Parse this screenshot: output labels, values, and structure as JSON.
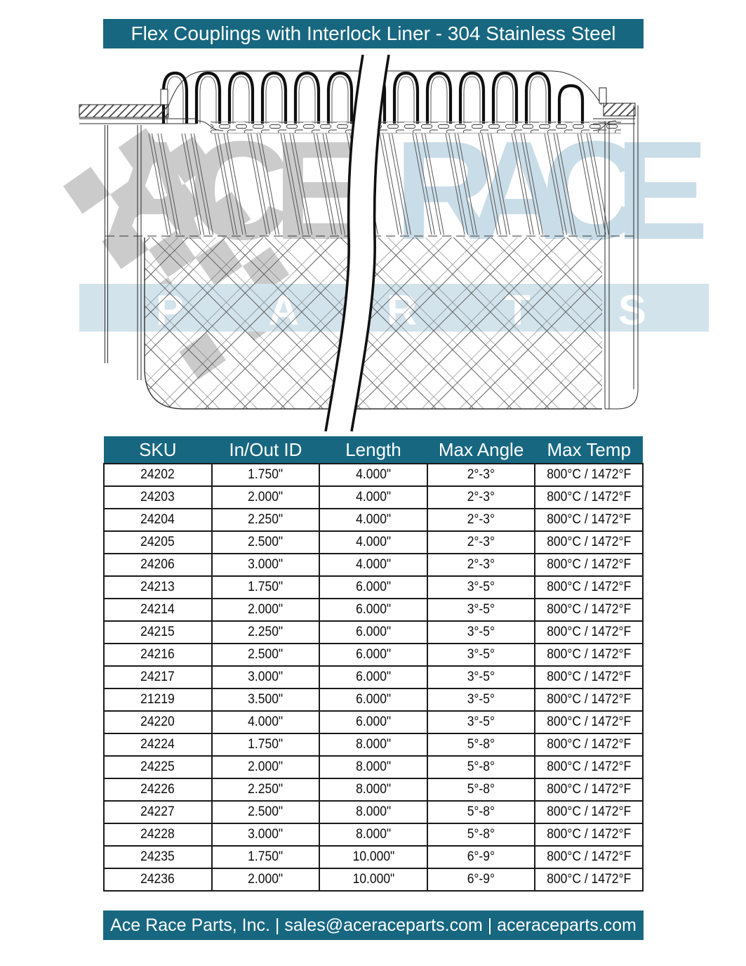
{
  "theme": {
    "teal": "#176781",
    "watermark_gray": "#cbcbcb",
    "watermark_blue": "#c9dde8",
    "watermark_band": "#d2e3ec",
    "line_color": "#2a2a2a"
  },
  "header": {
    "title": "Flex Couplings with Interlock Liner - 304 Stainless Steel"
  },
  "watermark": {
    "word1": "ACE",
    "word2": "RACE",
    "word3": "PARTS"
  },
  "table": {
    "columns": [
      "SKU",
      "In/Out ID",
      "Length",
      "Max Angle",
      "Max Temp"
    ],
    "rows": [
      [
        "24202",
        "1.750\"",
        "4.000\"",
        "2°-3°",
        "800°C / 1472°F"
      ],
      [
        "24203",
        "2.000\"",
        "4.000\"",
        "2°-3°",
        "800°C / 1472°F"
      ],
      [
        "24204",
        "2.250\"",
        "4.000\"",
        "2°-3°",
        "800°C / 1472°F"
      ],
      [
        "24205",
        "2.500\"",
        "4.000\"",
        "2°-3°",
        "800°C / 1472°F"
      ],
      [
        "24206",
        "3.000\"",
        "4.000\"",
        "2°-3°",
        "800°C / 1472°F"
      ],
      [
        "24213",
        "1.750\"",
        "6.000\"",
        "3°-5°",
        "800°C / 1472°F"
      ],
      [
        "24214",
        "2.000\"",
        "6.000\"",
        "3°-5°",
        "800°C / 1472°F"
      ],
      [
        "24215",
        "2.250\"",
        "6.000\"",
        "3°-5°",
        "800°C / 1472°F"
      ],
      [
        "24216",
        "2.500\"",
        "6.000\"",
        "3°-5°",
        "800°C / 1472°F"
      ],
      [
        "24217",
        "3.000\"",
        "6.000\"",
        "3°-5°",
        "800°C / 1472°F"
      ],
      [
        "21219",
        "3.500\"",
        "6.000\"",
        "3°-5°",
        "800°C / 1472°F"
      ],
      [
        "24220",
        "4.000\"",
        "6.000\"",
        "3°-5°",
        "800°C / 1472°F"
      ],
      [
        "24224",
        "1.750\"",
        "8.000\"",
        "5°-8°",
        "800°C / 1472°F"
      ],
      [
        "24225",
        "2.000\"",
        "8.000\"",
        "5°-8°",
        "800°C / 1472°F"
      ],
      [
        "24226",
        "2.250\"",
        "8.000\"",
        "5°-8°",
        "800°C / 1472°F"
      ],
      [
        "24227",
        "2.500\"",
        "8.000\"",
        "5°-8°",
        "800°C / 1472°F"
      ],
      [
        "24228",
        "3.000\"",
        "8.000\"",
        "5°-8°",
        "800°C / 1472°F"
      ],
      [
        "24235",
        "1.750\"",
        "10.000\"",
        "6°-9°",
        "800°C / 1472°F"
      ],
      [
        "24236",
        "2.000\"",
        "10.000\"",
        "6°-9°",
        "800°C / 1472°F"
      ]
    ]
  },
  "footer": {
    "text": "Ace Race Parts, Inc. | sales@aceraceparts.com | aceraceparts.com"
  }
}
